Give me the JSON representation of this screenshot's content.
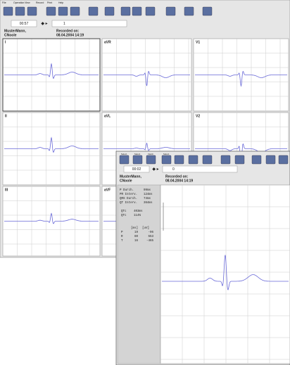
{
  "menu": [
    "File",
    "Operation",
    "View",
    "Record",
    "Print",
    "Help"
  ],
  "main": {
    "time": "00:57",
    "page": "1",
    "patient": [
      "MusterMann,",
      "CNoole"
    ],
    "recorded_label": "Recorded on:",
    "recorded": "08.04.2004  14:19",
    "leads": [
      "I",
      "aVR",
      "V1",
      "II",
      "aVL",
      "V2",
      "III",
      "aVF"
    ]
  },
  "detail": {
    "toolbar": [
      "Select",
      "Select",
      "Naviti",
      "Select"
    ],
    "time": "00:02",
    "page": "0",
    "patient": [
      "MusterMann,",
      "CNoole"
    ],
    "recorded_label": "Recorded on:",
    "recorded": "08.04.2004  14:19",
    "measurements": [
      {
        "label": "P Durch.",
        "value": "99ms"
      },
      {
        "label": "PR Interv.",
        "value": "124ms"
      },
      {
        "label": "QRS Durch.",
        "value": "74ms"
      },
      {
        "label": "QT Interv.",
        "value": "364ms"
      }
    ],
    "qtc": [
      {
        "label": "QTc",
        "value": "403ms"
      },
      {
        "label": "QTc",
        "value": "114%"
      }
    ],
    "table": {
      "header": [
        "[ms]",
        "[uV]"
      ],
      "rows": [
        [
          "P",
          "19",
          "-96"
        ],
        [
          "R",
          "60",
          "553"
        ],
        [
          "T",
          "16",
          "-465"
        ]
      ]
    }
  }
}
